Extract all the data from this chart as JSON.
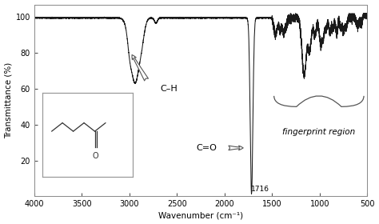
{
  "xlim_left": 4000,
  "xlim_right": 500,
  "ylim": [
    0,
    107
  ],
  "xlabel": "Wavenumber (cm⁻¹)",
  "ylabel": "Transmittance (%)",
  "yticks": [
    20,
    40,
    60,
    80,
    100
  ],
  "xticks": [
    4000,
    3500,
    3000,
    2500,
    2000,
    1500,
    1000,
    500
  ],
  "ch_label": "C–H",
  "co_label": "C=O",
  "fp_label": "fingerprint region",
  "peak_1716": "1716",
  "background_color": "#ffffff",
  "line_color": "#1a1a1a",
  "spine_color": "#888888",
  "annotation_color": "#555555"
}
